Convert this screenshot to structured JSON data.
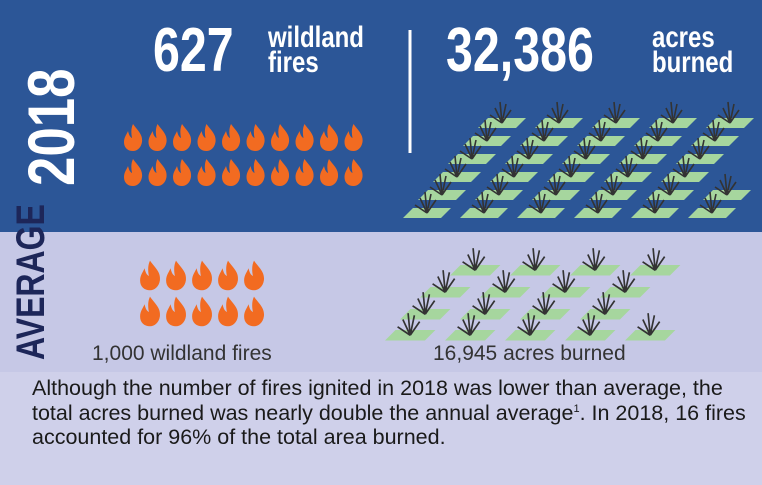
{
  "year": "2018",
  "fires": {
    "number": "627",
    "label_line1": "wildland",
    "label_line2": "fires"
  },
  "acres": {
    "number": "32,386",
    "label_line1": "acres",
    "label_line2": "burned"
  },
  "average": {
    "heading": "AVERAGE",
    "fires": "1,000 wildland fires",
    "acres": "16,945 acres burned"
  },
  "note": {
    "before": "Although the number of fires ignited in 2018 was lower than average, the total acres burned was nearly double the annual average",
    "footnote": "1",
    "after": ". In 2018, 16 fires accounted for 96% of the total area burned."
  }
}
